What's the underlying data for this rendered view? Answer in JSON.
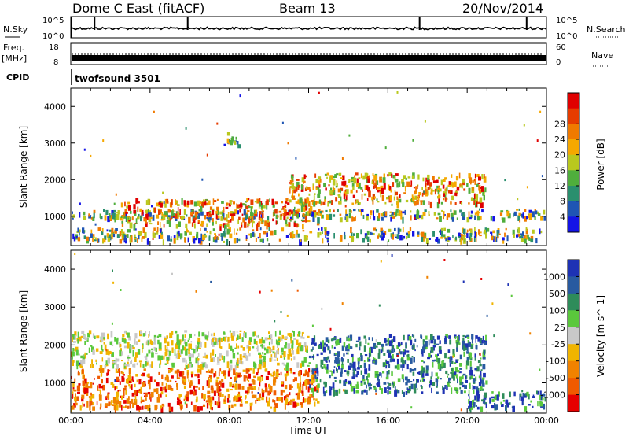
{
  "header": {
    "station": "Dome C East (fitACF)",
    "beam": "Beam 13",
    "date": "20/Nov/2014"
  },
  "summary_panels": {
    "nsky": {
      "label": "N.Sky",
      "tick_top": "10^5",
      "tick_bottom": "10^0"
    },
    "nsearch": {
      "label": "N.Search",
      "tick_top": "10^5",
      "tick_bottom": "10^0"
    },
    "freq": {
      "label_line1": "Freq.",
      "label_line2": "[MHz]",
      "tick_top": "18",
      "tick_bottom": "8"
    },
    "nave": {
      "label": "Nave",
      "tick_top": "60",
      "tick_bottom": "0"
    },
    "cpid": {
      "label": "CPID",
      "value": "twofsound 3501"
    }
  },
  "chart_data": [
    {
      "type": "heatmap",
      "title": "",
      "quantity": "Power",
      "ylabel": "Slant Range [km]",
      "xlabel": "Time UT",
      "x_ticks": [
        "00:00",
        "04:00",
        "08:00",
        "12:00",
        "16:00",
        "20:00",
        "00:00"
      ],
      "y_ticks": [
        1000,
        2000,
        3000,
        4000
      ],
      "ylim": [
        200,
        4500
      ],
      "colorbar": {
        "label": "Power [dB]",
        "tick_labels": [
          "4",
          "8",
          "12",
          "16",
          "20",
          "24",
          "28"
        ],
        "colors": [
          "#1414e6",
          "#1f55b4",
          "#2a8f6e",
          "#4fae3c",
          "#b9c81e",
          "#f5a800",
          "#f07a00",
          "#e63c00",
          "#e00000"
        ]
      },
      "echo_regions": [
        {
          "t_start_h": 0.0,
          "t_end_h": 24.0,
          "range_km": [
            300,
            700
          ],
          "level": "mid"
        },
        {
          "t_start_h": 0.0,
          "t_end_h": 24.0,
          "range_km": [
            900,
            1200
          ],
          "level": "mid"
        },
        {
          "t_start_h": 2.5,
          "t_end_h": 12.5,
          "range_km": [
            700,
            1500
          ],
          "level": "high"
        },
        {
          "t_start_h": 11.0,
          "t_end_h": 21.0,
          "range_km": [
            1300,
            2200
          ],
          "level": "high"
        },
        {
          "t_start_h": 7.5,
          "t_end_h": 8.5,
          "range_km": [
            2900,
            3300
          ],
          "level": "mid"
        }
      ]
    },
    {
      "type": "heatmap",
      "title": "",
      "quantity": "Velocity",
      "ylabel": "Slant Range [km]",
      "xlabel": "Time UT",
      "x_ticks": [
        "00:00",
        "04:00",
        "08:00",
        "12:00",
        "16:00",
        "20:00",
        "00:00"
      ],
      "y_ticks": [
        1000,
        2000,
        3000,
        4000
      ],
      "ylim": [
        200,
        4500
      ],
      "colorbar": {
        "label": "Velocity [m s^-1]",
        "tick_labels": [
          "1000",
          "500",
          "100",
          "25",
          "-25",
          "-100",
          "-500",
          "-1000"
        ],
        "colors": [
          "#1e32b4",
          "#285aa0",
          "#2e8c5a",
          "#5ac83c",
          "#c8c8c8",
          "#f0b400",
          "#f08200",
          "#f05a00",
          "#e60000"
        ]
      },
      "echo_regions": [
        {
          "t_start_h": 0.0,
          "t_end_h": 12.5,
          "range_km": [
            300,
            1400
          ],
          "level": "negative"
        },
        {
          "t_start_h": 0.0,
          "t_end_h": 12.0,
          "range_km": [
            1400,
            2400
          ],
          "level": "near-zero"
        },
        {
          "t_start_h": 12.0,
          "t_end_h": 21.0,
          "range_km": [
            700,
            2300
          ],
          "level": "positive"
        },
        {
          "t_start_h": 20.0,
          "t_end_h": 24.0,
          "range_km": [
            300,
            800
          ],
          "level": "positive"
        }
      ]
    }
  ],
  "x_axis_title": "Time UT"
}
